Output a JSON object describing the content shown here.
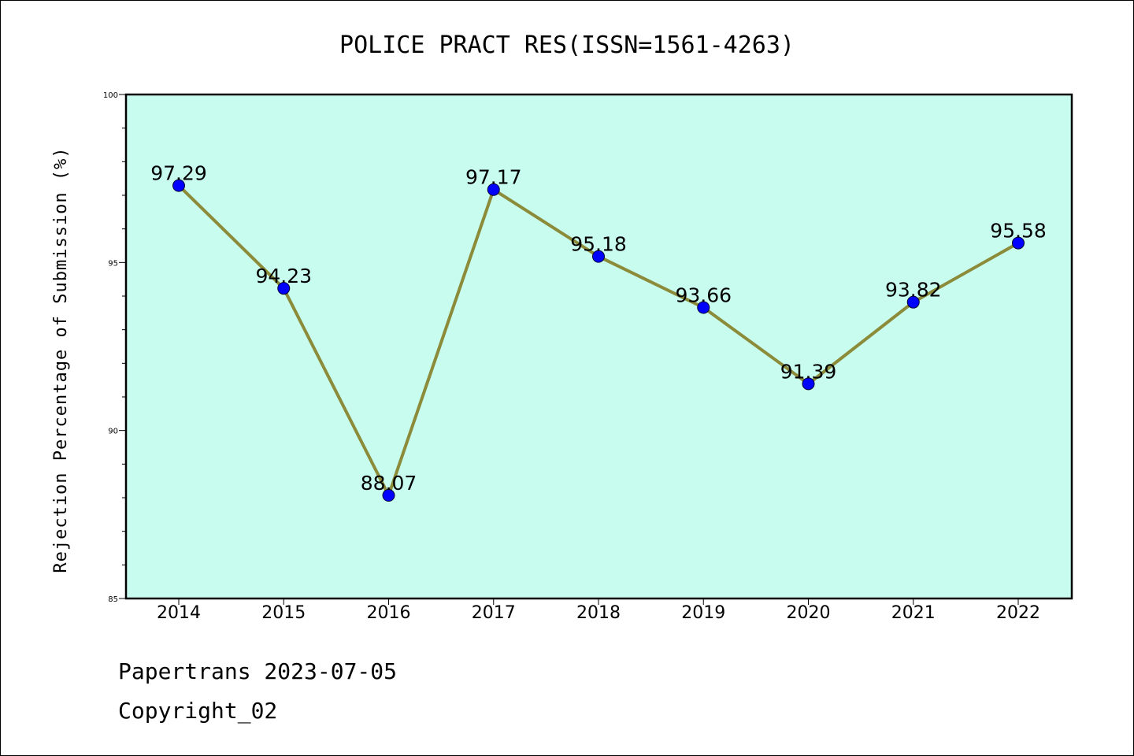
{
  "chart_data": {
    "type": "line",
    "title": "POLICE PRACT RES(ISSN=1561-4263)",
    "ylabel": "Rejection Percentage of Submission (%)",
    "xlabel": "",
    "categories": [
      "2014",
      "2015",
      "2016",
      "2017",
      "2018",
      "2019",
      "2020",
      "2021",
      "2022"
    ],
    "values": [
      97.29,
      94.23,
      88.07,
      97.17,
      95.18,
      93.66,
      91.39,
      93.82,
      95.58
    ],
    "data_labels": [
      "97.29",
      "94.23",
      "88.07",
      "97.17",
      "95.18",
      "93.66",
      "91.39",
      "93.82",
      "95.58"
    ],
    "ylim": [
      85,
      100
    ],
    "yticks": [
      "85",
      "90",
      "95",
      "100"
    ],
    "yminor_step": 1,
    "grid": false,
    "plot_background": "#c7fcee",
    "line_color": "#8b8b3a",
    "marker_color": "#0000ff"
  },
  "footer": {
    "line1": "Papertrans 2023-07-05",
    "line2": "Copyright_02"
  }
}
